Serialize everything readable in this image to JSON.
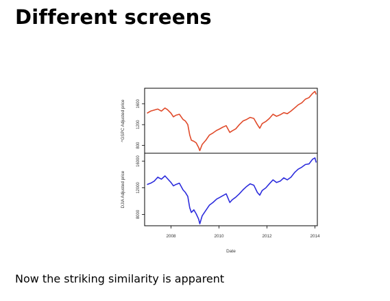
{
  "slide": {
    "title": "Different screens",
    "caption": "Now the striking similarity is apparent"
  },
  "chart_data": {
    "type": "line",
    "layout": "two stacked panels sharing the x axis",
    "xlabel": "Date",
    "x_ticks": [
      "2008",
      "2010",
      "2012",
      "2014"
    ],
    "xlim": [
      2006.9,
      2014.1
    ],
    "panels": [
      {
        "ylabel": "^GSPC Adjusted price",
        "y_ticks": [
          "800",
          "1200",
          "1600"
        ],
        "ylim": [
          650,
          1900
        ],
        "color": "#e04a2a",
        "series": {
          "x": [
            2007.0,
            2007.15,
            2007.3,
            2007.45,
            2007.6,
            2007.75,
            2007.85,
            2008.0,
            2008.1,
            2008.2,
            2008.35,
            2008.5,
            2008.6,
            2008.7,
            2008.78,
            2008.85,
            2008.95,
            2009.05,
            2009.15,
            2009.2,
            2009.3,
            2009.45,
            2009.6,
            2009.75,
            2009.9,
            2010.0,
            2010.15,
            2010.3,
            2010.45,
            2010.55,
            2010.7,
            2010.85,
            2011.0,
            2011.15,
            2011.3,
            2011.45,
            2011.6,
            2011.7,
            2011.8,
            2011.95,
            2012.1,
            2012.25,
            2012.4,
            2012.55,
            2012.7,
            2012.85,
            2013.0,
            2013.15,
            2013.3,
            2013.45,
            2013.6,
            2013.75,
            2013.9,
            2014.0,
            2014.05
          ],
          "y": [
            1420,
            1460,
            1480,
            1500,
            1460,
            1520,
            1490,
            1420,
            1350,
            1380,
            1400,
            1300,
            1270,
            1200,
            1000,
            900,
            880,
            850,
            760,
            700,
            820,
            900,
            1000,
            1040,
            1090,
            1110,
            1150,
            1180,
            1050,
            1080,
            1120,
            1200,
            1270,
            1300,
            1340,
            1320,
            1200,
            1130,
            1220,
            1260,
            1320,
            1400,
            1360,
            1390,
            1430,
            1410,
            1460,
            1520,
            1580,
            1620,
            1690,
            1720,
            1800,
            1840,
            1780
          ]
        }
      },
      {
        "ylabel": "DJIA Adjusted price",
        "y_ticks": [
          "8000",
          "12000",
          "16000"
        ],
        "ylim": [
          6300,
          17200
        ],
        "color": "#2b2bdc",
        "series": {
          "x": [
            2007.0,
            2007.15,
            2007.3,
            2007.45,
            2007.6,
            2007.75,
            2007.85,
            2008.0,
            2008.1,
            2008.2,
            2008.35,
            2008.5,
            2008.6,
            2008.7,
            2008.78,
            2008.85,
            2008.95,
            2009.05,
            2009.15,
            2009.2,
            2009.3,
            2009.45,
            2009.6,
            2009.75,
            2009.9,
            2010.0,
            2010.15,
            2010.3,
            2010.45,
            2010.55,
            2010.7,
            2010.85,
            2011.0,
            2011.15,
            2011.3,
            2011.45,
            2011.6,
            2011.7,
            2011.8,
            2011.95,
            2012.1,
            2012.25,
            2012.4,
            2012.55,
            2012.7,
            2012.85,
            2013.0,
            2013.15,
            2013.3,
            2013.45,
            2013.6,
            2013.75,
            2013.9,
            2014.0,
            2014.05
          ],
          "y": [
            12500,
            12700,
            13000,
            13600,
            13300,
            13800,
            13400,
            12800,
            12300,
            12500,
            12700,
            11700,
            11300,
            10700,
            9000,
            8300,
            8700,
            8100,
            7300,
            6600,
            7800,
            8600,
            9400,
            9800,
            10300,
            10500,
            10800,
            11100,
            9800,
            10200,
            10600,
            11100,
            11700,
            12200,
            12600,
            12400,
            11300,
            10900,
            11600,
            12000,
            12600,
            13200,
            12800,
            13000,
            13500,
            13200,
            13600,
            14300,
            14800,
            15100,
            15500,
            15600,
            16300,
            16500,
            15800
          ]
        }
      }
    ]
  }
}
